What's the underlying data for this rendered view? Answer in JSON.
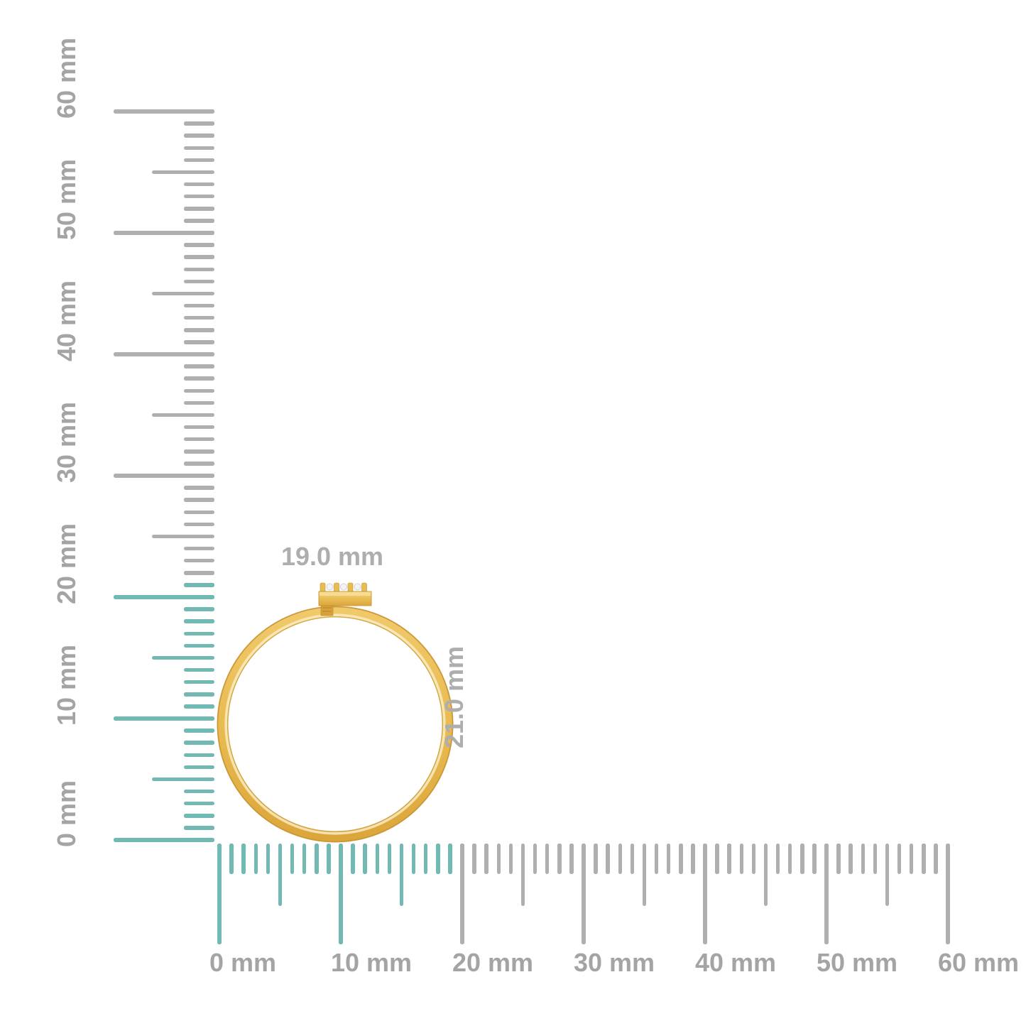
{
  "measurement": {
    "width_label": "19.0 mm",
    "height_label": "21.0 mm"
  },
  "rulers": {
    "unit": "mm",
    "max_mm": 60,
    "major_step_mm": 10,
    "vertical": {
      "labels": [
        "0 mm",
        "10 mm",
        "20 mm",
        "30 mm",
        "40 mm",
        "50 mm",
        "60 mm"
      ],
      "highlight_extent_mm": 21
    },
    "horizontal": {
      "labels": [
        "0 mm",
        "10 mm",
        "20 mm",
        "30 mm",
        "40 mm",
        "50 mm",
        "60 mm"
      ],
      "highlight_extent_mm": 19
    }
  },
  "colors": {
    "highlight_teal": "#72B8B3",
    "tick_gray": "#AFAFAF",
    "label_gray": "#A4A4A4",
    "dimension_gray": "#AEAEAE",
    "gold_main": "#E8BA4F",
    "gold_dark": "#D19934",
    "gold_light": "#F7E3A3",
    "diamond_white": "#F3F3F5",
    "background": "#FFFFFF"
  },
  "object": {
    "description": "gold-ring-side-view-with-diamond-accent-bar"
  }
}
